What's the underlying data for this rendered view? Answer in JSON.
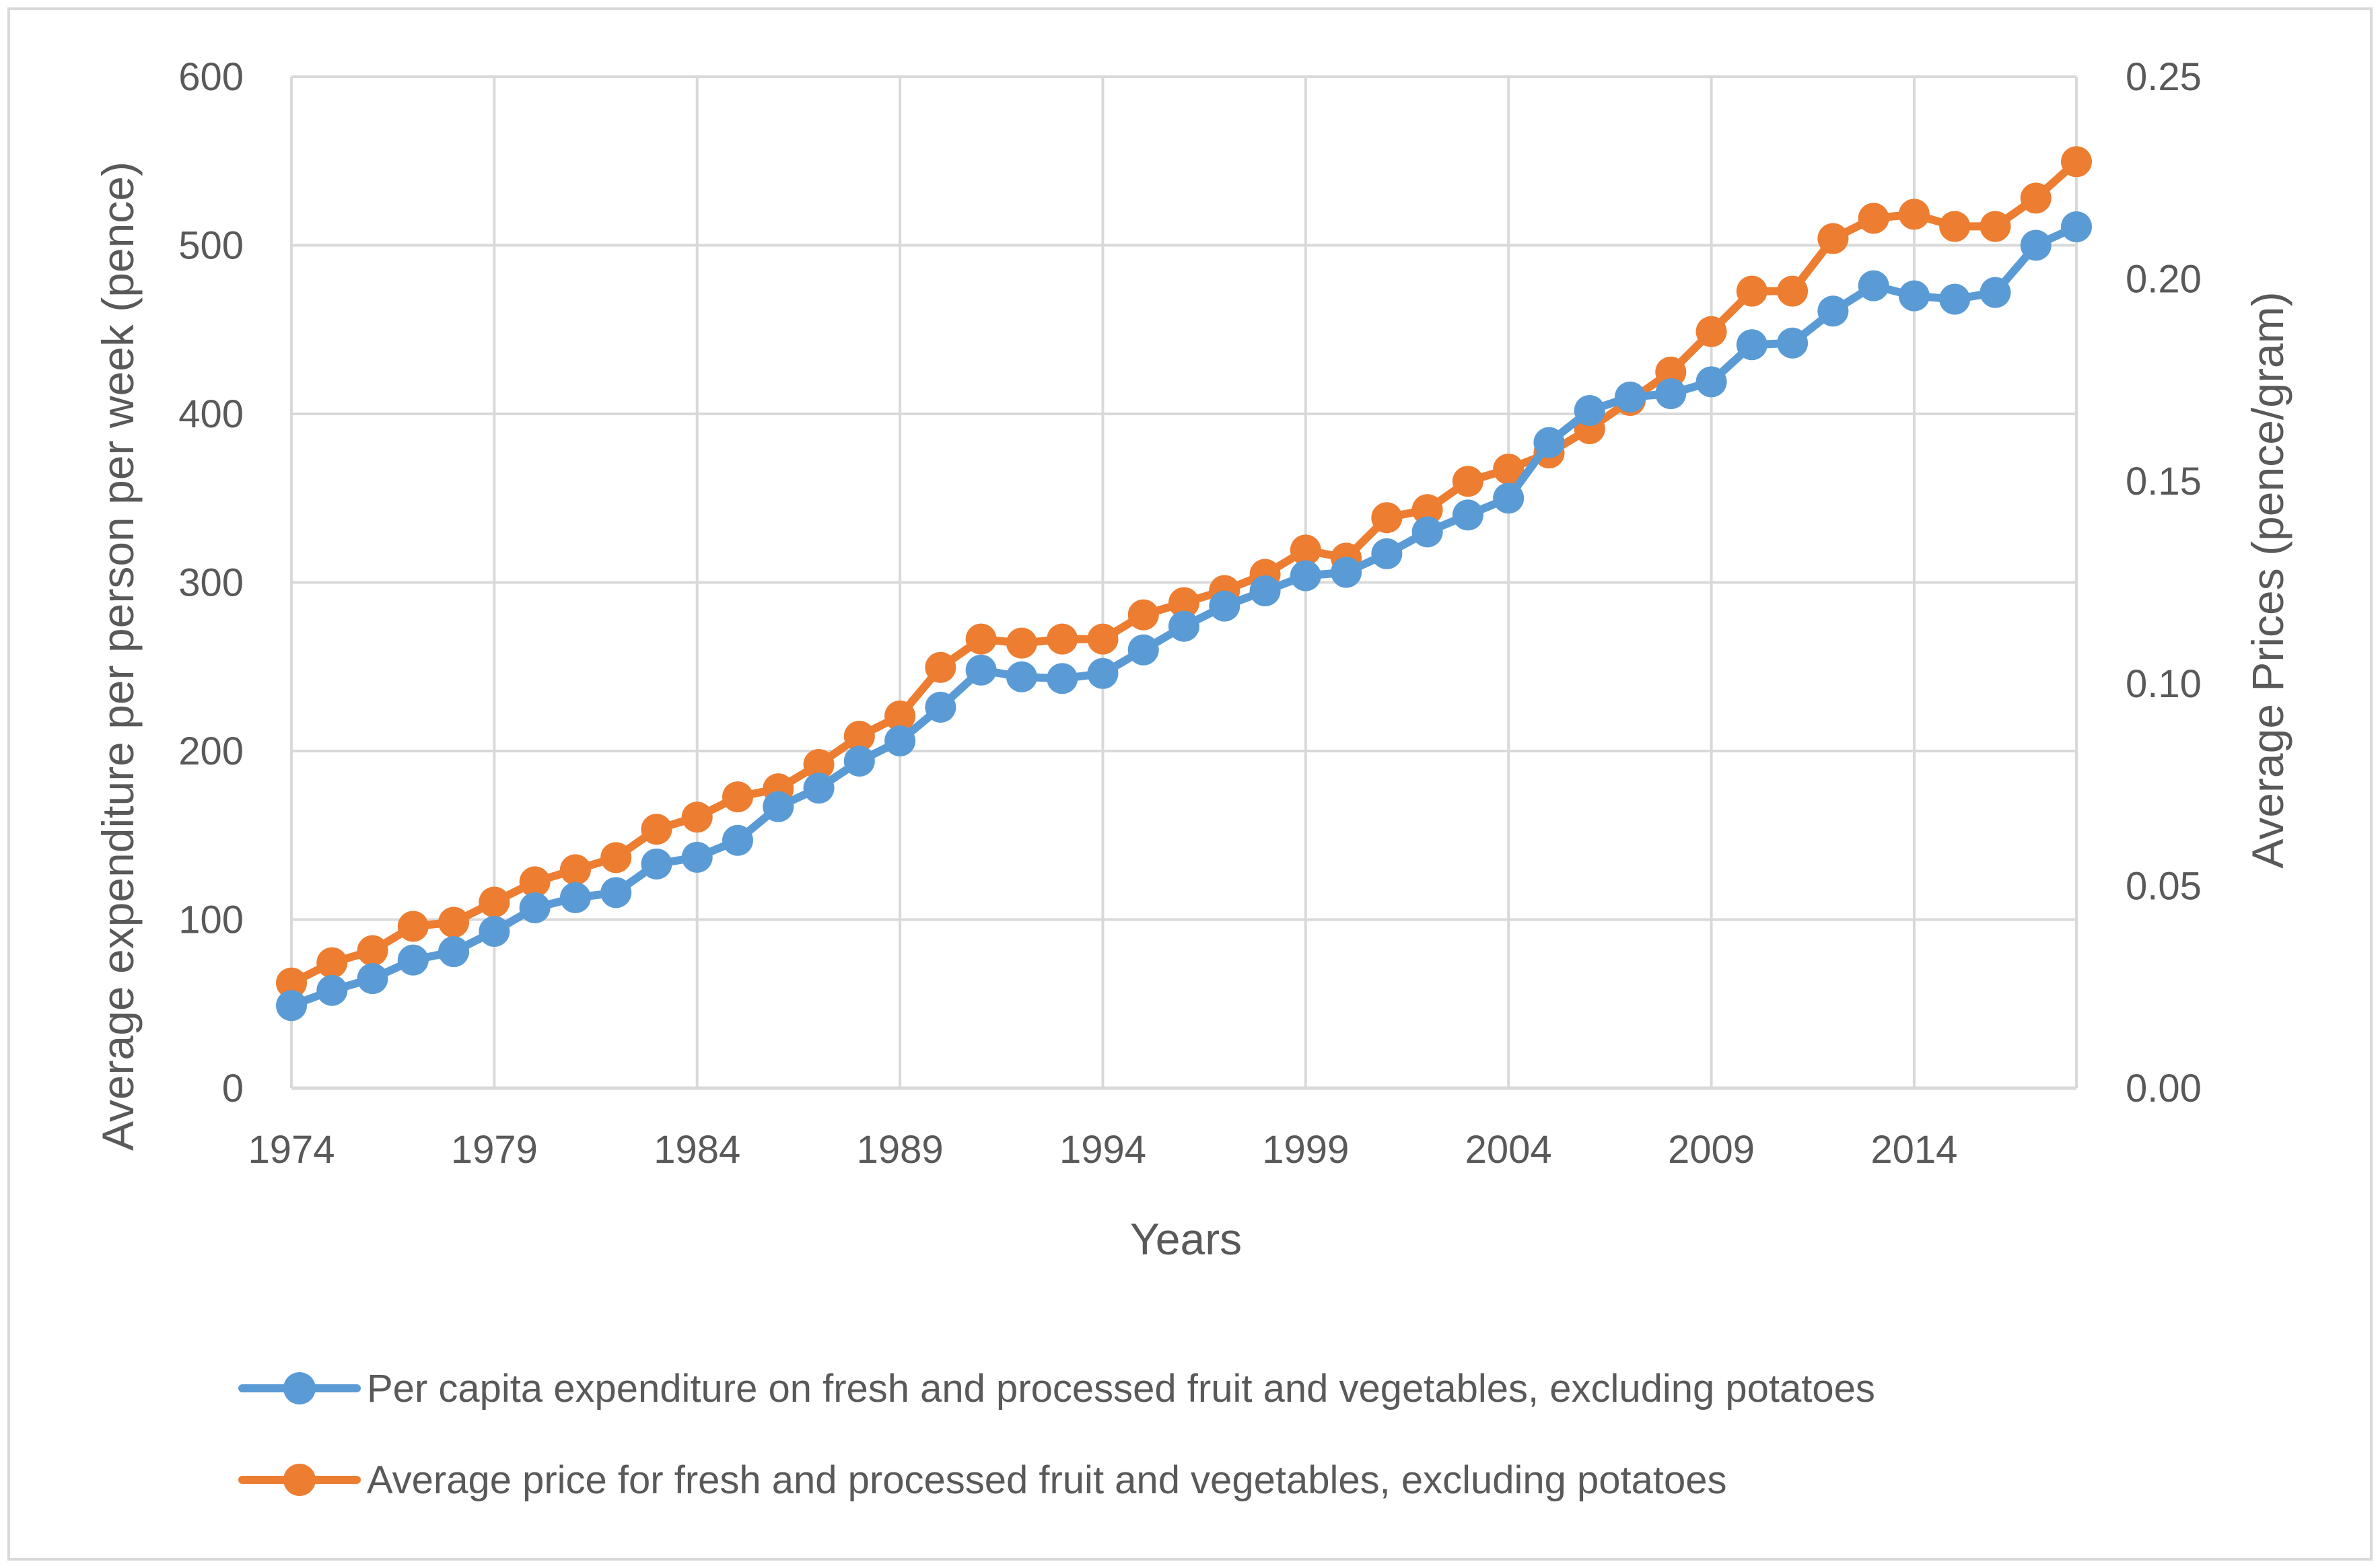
{
  "chart_data": {
    "type": "line",
    "title": "",
    "xlabel": "Years",
    "ylabel": "Average expenditure per person per week (pence)",
    "y2label": "Average Prices (pence/gram)",
    "ylim": [
      0,
      600
    ],
    "y2lim": [
      0,
      0.25
    ],
    "grid": true,
    "legend_position": "bottom",
    "x_tick_labels": [
      "1974",
      "1979",
      "1984",
      "1989",
      "1994",
      "1999",
      "2004",
      "2009",
      "2014"
    ],
    "y_tick_labels": [
      "0",
      "100",
      "200",
      "300",
      "400",
      "500",
      "600"
    ],
    "y2_tick_labels": [
      "0.00",
      "0.05",
      "0.10",
      "0.15",
      "0.20",
      "0.25"
    ],
    "x": [
      1974,
      1975,
      1976,
      1977,
      1978,
      1979,
      1980,
      1981,
      1982,
      1983,
      1984,
      1985,
      1986,
      1987,
      1988,
      1989,
      1990,
      1991,
      1992,
      1993,
      1994,
      1995,
      1996,
      1997,
      1998,
      1999,
      2000,
      2001,
      2002,
      2003,
      2004,
      2005,
      2006,
      2007,
      2008,
      2009,
      2010,
      2011,
      2012,
      2013,
      2014,
      2015,
      2016,
      2017,
      2018
    ],
    "series": [
      {
        "name": "Per capita expenditure on fresh and processed fruit and vegetables, excluding potatoes",
        "axis": "left",
        "color": "#5B9BD5",
        "values": [
          49,
          58,
          65,
          76,
          81,
          93,
          107,
          113,
          116,
          133,
          137,
          147,
          167,
          178,
          194,
          206,
          226,
          248,
          244,
          243,
          246,
          260,
          274,
          286,
          295,
          304,
          306,
          317,
          330,
          340,
          350,
          383,
          402,
          410,
          412,
          419,
          441,
          442,
          461,
          476,
          470,
          468,
          472,
          500,
          511
        ]
      },
      {
        "name": "Average price for fresh and processed fruit and vegetables, excluding potatoes",
        "axis": "right",
        "color": "#ED7D31",
        "values": [
          0.026,
          0.031,
          0.034,
          0.04,
          0.041,
          0.046,
          0.051,
          0.054,
          0.057,
          0.064,
          0.067,
          0.072,
          0.074,
          0.08,
          0.087,
          0.092,
          0.104,
          0.111,
          0.11,
          0.111,
          0.111,
          0.117,
          0.12,
          0.123,
          0.127,
          0.133,
          0.131,
          0.141,
          0.143,
          0.15,
          0.153,
          0.157,
          0.163,
          0.17,
          0.177,
          0.187,
          0.197,
          0.197,
          0.21,
          0.215,
          0.216,
          0.213,
          0.213,
          0.22,
          0.229
        ]
      }
    ]
  }
}
